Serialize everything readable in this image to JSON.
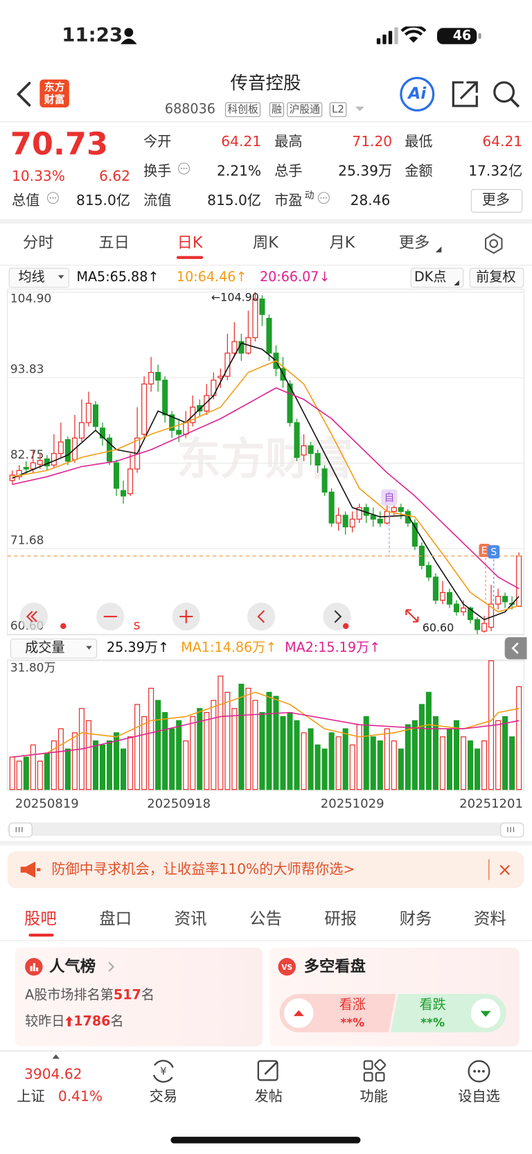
{
  "status": {
    "time": "11:23",
    "battery": "46"
  },
  "header": {
    "logo": [
      "东方",
      "财富"
    ],
    "title": "传音控股",
    "code": "688036",
    "tags": [
      "科创板",
      "融",
      "沪股通",
      "L2"
    ],
    "ai": "Ai"
  },
  "quote": {
    "price": "70.73",
    "pct": "10.33%",
    "change": "6.62",
    "fields": [
      {
        "label": "今开",
        "value": "64.21"
      },
      {
        "label": "最高",
        "value": "71.20"
      },
      {
        "label": "最低",
        "value": "64.21"
      },
      {
        "label": "换手",
        "value": "2.21%"
      },
      {
        "label": "总手",
        "value": "25.39万"
      },
      {
        "label": "金额",
        "value": "17.32亿"
      },
      {
        "label": "总值",
        "value": "815.0亿"
      },
      {
        "label": "流值",
        "value": "815.0亿"
      },
      {
        "label": "市盈",
        "sup": "动",
        "value": "28.46"
      }
    ],
    "more": "更多"
  },
  "tabs": {
    "items": [
      "分时",
      "五日",
      "日K",
      "周K",
      "月K",
      "更多"
    ],
    "active": 2
  },
  "kline_bar": {
    "ma_select": "均线",
    "ma5": "MA5:65.88↑",
    "ma10": "10:64.46↑",
    "ma20": "20:66.07↓",
    "dk": "DK点",
    "adjust": "前复权"
  },
  "volume_bar": {
    "select": "成交量",
    "vol": "25.39万↑",
    "ma1": "MA1:14.86万↑",
    "ma2": "MA2:15.19万↑"
  },
  "chart_data": [
    {
      "type": "candlestick",
      "up_color": "#e8312f",
      "down_color": "#1d9e2a",
      "grid": true,
      "ylim": [
        60.6,
        104.9
      ],
      "yticks": [
        {
          "value": 104.9,
          "label": "104.90"
        },
        93.83,
        82.75,
        71.68,
        {
          "value": 60.6,
          "label": "60.60"
        }
      ],
      "candles": [
        [
          80.5,
          81.2,
          81.8,
          80.0
        ],
        [
          81.0,
          81.8,
          82.5,
          80.6
        ],
        [
          82.2,
          82.0,
          83.0,
          81.3
        ],
        [
          82.0,
          82.8,
          84.5,
          81.5
        ],
        [
          82.6,
          83.1,
          84.0,
          82.0
        ],
        [
          83.3,
          82.4,
          83.8,
          81.8
        ],
        [
          82.5,
          84.0,
          86.5,
          82.2
        ],
        [
          84.0,
          85.5,
          88.0,
          83.5
        ],
        [
          85.8,
          83.0,
          86.2,
          82.5
        ],
        [
          83.2,
          86.0,
          89.0,
          82.8
        ],
        [
          86.0,
          88.0,
          91.0,
          85.5
        ],
        [
          88.0,
          90.5,
          92.0,
          87.5
        ],
        [
          90.3,
          87.5,
          90.8,
          87.0
        ],
        [
          87.3,
          86.0,
          88.0,
          85.0
        ],
        [
          86.0,
          83.0,
          86.5,
          82.5
        ],
        [
          82.8,
          79.5,
          83.2,
          78.5
        ],
        [
          79.2,
          78.5,
          80.5,
          77.5
        ],
        [
          78.8,
          82.0,
          84.0,
          78.5
        ],
        [
          82.0,
          86.0,
          90.0,
          81.5
        ],
        [
          86.5,
          93.0,
          94.0,
          86.0
        ],
        [
          93.0,
          94.5,
          96.5,
          92.0
        ],
        [
          94.5,
          93.5,
          95.5,
          92.0
        ],
        [
          93.5,
          89.0,
          94.0,
          88.0
        ],
        [
          89.0,
          87.0,
          89.5,
          86.0
        ],
        [
          87.0,
          86.5,
          88.5,
          85.5
        ],
        [
          86.5,
          88.0,
          89.5,
          86.0
        ],
        [
          88.0,
          90.0,
          91.5,
          87.5
        ],
        [
          90.2,
          89.5,
          91.0,
          88.8
        ],
        [
          89.5,
          91.5,
          93.0,
          89.0
        ],
        [
          91.5,
          93.5,
          94.5,
          91.0
        ],
        [
          93.8,
          94.0,
          95.0,
          92.5
        ],
        [
          94.0,
          97.0,
          99.5,
          93.5
        ],
        [
          97.0,
          98.5,
          101.0,
          96.5
        ],
        [
          98.5,
          97.0,
          99.5,
          96.0
        ],
        [
          97.0,
          99.0,
          102.5,
          96.8
        ],
        [
          99.0,
          104.0,
          104.9,
          98.5
        ],
        [
          104.0,
          102.0,
          104.5,
          100.5
        ],
        [
          101.5,
          97.0,
          102.0,
          96.0
        ],
        [
          97.0,
          95.0,
          98.0,
          94.0
        ],
        [
          95.0,
          93.5,
          96.5,
          92.5
        ],
        [
          93.0,
          88.0,
          93.5,
          87.5
        ],
        [
          88.0,
          83.5,
          88.5,
          83.0
        ],
        [
          83.8,
          85.0,
          86.5,
          83.0
        ],
        [
          85.0,
          84.0,
          85.5,
          82.5
        ],
        [
          84.0,
          82.5,
          84.5,
          81.5
        ],
        [
          82.0,
          79.0,
          82.5,
          78.5
        ],
        [
          79.0,
          75.0,
          79.5,
          74.5
        ],
        [
          75.0,
          76.0,
          77.0,
          74.0
        ],
        [
          76.0,
          74.5,
          76.5,
          73.5
        ],
        [
          74.5,
          75.5,
          76.5,
          73.8
        ],
        [
          75.5,
          77.0,
          77.5,
          75.0
        ],
        [
          77.0,
          76.0,
          77.5,
          75.0
        ],
        [
          76.0,
          75.5,
          77.0,
          74.5
        ],
        [
          75.5,
          75.0,
          76.5,
          74.5
        ],
        [
          75.0,
          76.5,
          77.5,
          74.8
        ],
        [
          76.5,
          77.0,
          78.0,
          76.0
        ],
        [
          77.0,
          76.5,
          77.5,
          75.5
        ],
        [
          76.5,
          75.0,
          76.8,
          74.5
        ],
        [
          75.0,
          72.0,
          75.5,
          71.5
        ],
        [
          72.0,
          69.5,
          72.5,
          69.0
        ],
        [
          69.5,
          68.0,
          70.0,
          67.5
        ],
        [
          68.0,
          65.0,
          68.5,
          64.5
        ],
        [
          65.0,
          66.0,
          67.5,
          64.5
        ],
        [
          66.0,
          64.5,
          66.5,
          64.0
        ],
        [
          64.5,
          63.5,
          65.0,
          63.0
        ],
        [
          63.5,
          64.0,
          65.0,
          63.0
        ],
        [
          64.0,
          62.5,
          64.2,
          62.0
        ],
        [
          62.5,
          61.2,
          62.8,
          60.6
        ],
        [
          61.0,
          62.0,
          63.0,
          60.8
        ],
        [
          61.5,
          64.5,
          67.0,
          61.0
        ],
        [
          64.5,
          65.5,
          66.5,
          63.8
        ],
        [
          65.5,
          64.8,
          66.0,
          64.0
        ],
        [
          64.6,
          64.5,
          65.5,
          63.8
        ],
        [
          64.21,
          70.73,
          71.2,
          64.21
        ]
      ],
      "series": [
        {
          "color": "#111111",
          "x": [
            0,
            4,
            8,
            12,
            15,
            18,
            21,
            25,
            29,
            31,
            33,
            36,
            38,
            41,
            45,
            49,
            53,
            57,
            61,
            65,
            68,
            71,
            73
          ],
          "values": [
            80.8,
            82.3,
            83.8,
            87.0,
            84.5,
            84.0,
            89.5,
            88.0,
            91.5,
            95.0,
            98.3,
            97.5,
            96.0,
            91.0,
            84.0,
            77.0,
            75.8,
            76.0,
            70.0,
            64.5,
            62.5,
            63.5,
            65.5
          ]
        },
        {
          "color": "#f39c12",
          "x": [
            0,
            5,
            10,
            15,
            20,
            25,
            30,
            34,
            38,
            42,
            46,
            50,
            54,
            58,
            62,
            66,
            70,
            73
          ],
          "values": [
            81.0,
            81.8,
            83.5,
            84.5,
            86.5,
            88.0,
            90.0,
            94.5,
            96.0,
            93.0,
            86.5,
            79.5,
            76.5,
            75.8,
            71.0,
            66.0,
            63.5,
            64.3
          ]
        },
        {
          "color": "#e0208f",
          "x": [
            0,
            5,
            10,
            15,
            20,
            25,
            30,
            35,
            38,
            42,
            46,
            50,
            54,
            58,
            62,
            66,
            70,
            73
          ],
          "values": [
            80.0,
            81.0,
            82.3,
            83.0,
            84.5,
            86.5,
            88.5,
            91.0,
            92.5,
            91.0,
            88.5,
            85.0,
            81.5,
            78.5,
            75.0,
            71.5,
            68.0,
            66.5
          ]
        }
      ],
      "max_label": "←104.90",
      "min_label": "60.60",
      "markers": [
        "自",
        "E",
        "S"
      ],
      "watermark": "东方财富",
      "control_label": "s"
    },
    {
      "type": "bar",
      "ylim": [
        0,
        31.8
      ],
      "yticks": [
        {
          "value": 31.8,
          "label": "31.80万"
        }
      ],
      "categories": [
        null,
        null,
        null,
        null,
        null,
        "20250819",
        null,
        null,
        null,
        null,
        null,
        null,
        null,
        null,
        null,
        null,
        null,
        null,
        null,
        null,
        null,
        null,
        null,
        null,
        "20250918",
        null,
        null,
        null,
        null,
        null,
        null,
        null,
        null,
        null,
        null,
        null,
        null,
        null,
        null,
        null,
        null,
        null,
        null,
        null,
        null,
        null,
        null,
        null,
        null,
        "20251029",
        null,
        null,
        null,
        null,
        null,
        null,
        null,
        null,
        null,
        null,
        null,
        null,
        null,
        null,
        null,
        null,
        null,
        null,
        null,
        "20251201",
        null,
        null,
        null,
        null
      ],
      "values": [
        8,
        7,
        8,
        11,
        7,
        9,
        12,
        15,
        10,
        14,
        20,
        17,
        12,
        11,
        12,
        14,
        10,
        13,
        21,
        18,
        25,
        22,
        19,
        15,
        17,
        12,
        18,
        20,
        19,
        22,
        28,
        24,
        20,
        26,
        25,
        22,
        19,
        24,
        23,
        18,
        19,
        17,
        14,
        15,
        11,
        10,
        14,
        13,
        15,
        11,
        16,
        18,
        13,
        12,
        15,
        12,
        10,
        16,
        17,
        21,
        24,
        18,
        13,
        15,
        17,
        13,
        12,
        10,
        12,
        31.8,
        17,
        18,
        13,
        25.39
      ],
      "series": [
        {
          "color": "#f39c12",
          "x": [
            0,
            5,
            10,
            15,
            20,
            25,
            30,
            35,
            40,
            45,
            50,
            55,
            60,
            65,
            69,
            70,
            73
          ],
          "values": [
            8,
            9,
            14,
            13,
            17,
            18,
            21,
            24,
            21,
            15,
            13,
            14,
            16,
            15,
            17,
            19,
            20
          ]
        },
        {
          "color": "#e0208f",
          "x": [
            0,
            10,
            20,
            30,
            40,
            50,
            60,
            65,
            70,
            73
          ],
          "values": [
            8,
            10,
            14,
            18,
            19,
            16,
            15,
            15,
            16,
            17
          ]
        }
      ]
    }
  ],
  "banner": {
    "text": "防御中寻求机会，让收益率110%的大师帮你选>",
    "close": "×"
  },
  "subtabs": {
    "items": [
      "股吧",
      "盘口",
      "资讯",
      "公告",
      "研报",
      "财务",
      "资料"
    ],
    "active": 0
  },
  "popularity": {
    "title": "人气榜",
    "rank_prefix": "A股市场排名第",
    "rank": "517",
    "rank_suffix": "名",
    "change_prefix": "较昨日",
    "change": "1786",
    "change_suffix": "名"
  },
  "sentiment": {
    "title": "多空看盘",
    "bull": "看涨",
    "bull_pct": "**%",
    "bear": "看跌",
    "bear_pct": "**%"
  },
  "bottom": {
    "index_value": "3904.62",
    "index_name": "上证",
    "index_pct": "0.41%",
    "items": [
      "交易",
      "发帖",
      "功能",
      "设自选"
    ]
  }
}
